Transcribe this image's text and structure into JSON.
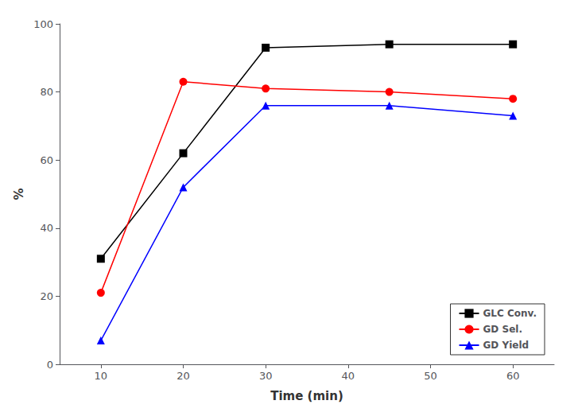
{
  "chart_data": {
    "type": "line",
    "x": [
      10,
      20,
      30,
      45,
      60
    ],
    "series": [
      {
        "name": "GLC Conv.",
        "color": "#000000",
        "marker": "square",
        "values": [
          31,
          62,
          93,
          94,
          94
        ]
      },
      {
        "name": "GD Sel.",
        "color": "#ff0000",
        "marker": "circle",
        "values": [
          21,
          83,
          81,
          80,
          78
        ]
      },
      {
        "name": "GD Yield",
        "color": "#0000ff",
        "marker": "triangle",
        "values": [
          7,
          52,
          76,
          76,
          73
        ]
      }
    ],
    "xlabel": "Time (min)",
    "ylabel": "%",
    "xlim": [
      5,
      65
    ],
    "ylim": [
      0,
      100
    ],
    "xticks": [
      10,
      20,
      30,
      40,
      50,
      60
    ],
    "yticks": [
      0,
      20,
      40,
      60,
      80,
      100
    ],
    "legend": "lower right",
    "grid": false
  }
}
